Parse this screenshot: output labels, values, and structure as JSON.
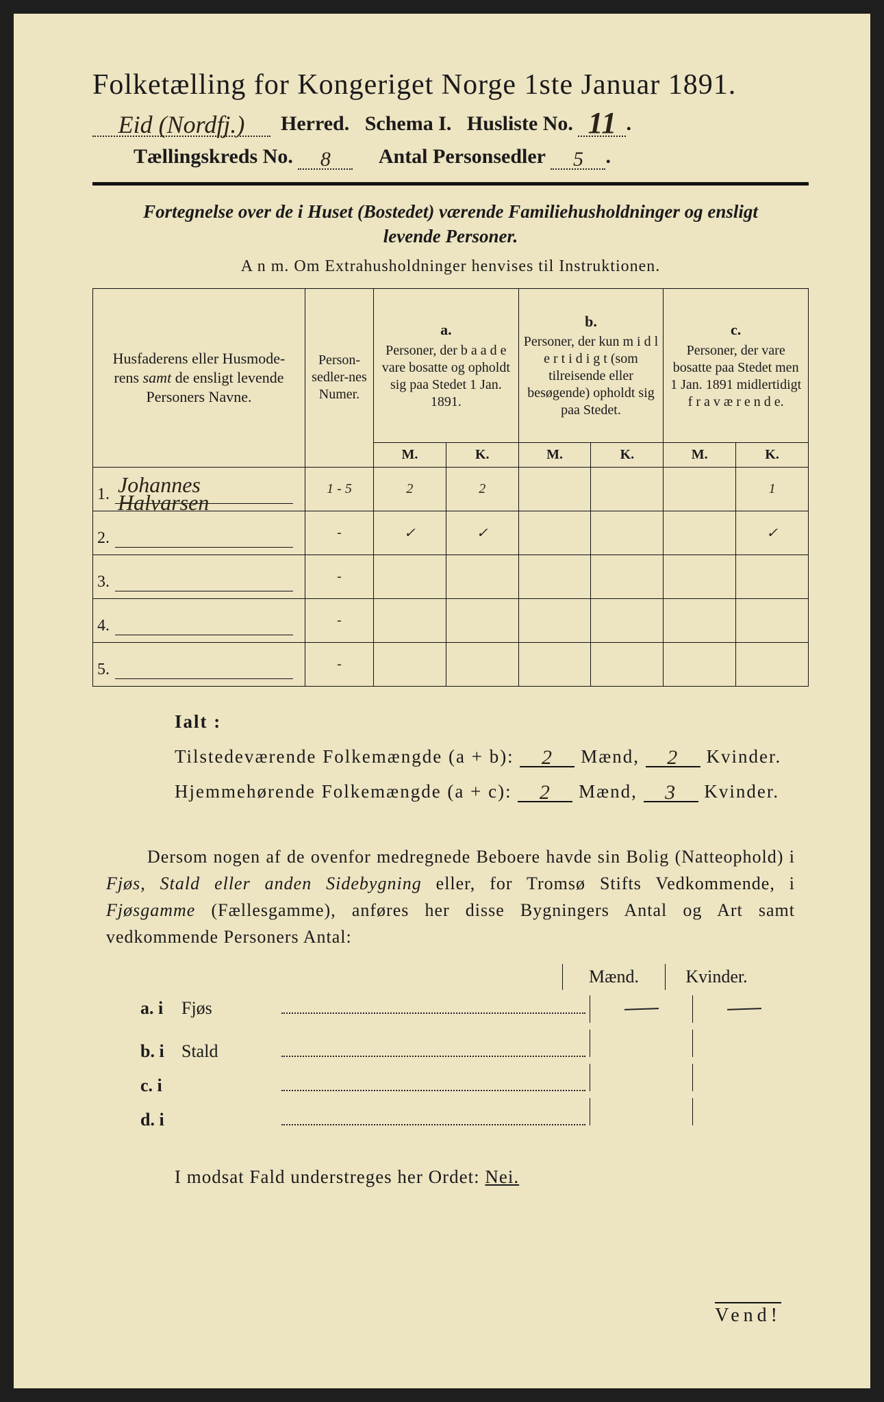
{
  "title": "Folketælling for Kongeriget Norge 1ste Januar 1891.",
  "line2": {
    "herred_value": "Eid (Nordfj.)",
    "herred_label": "Herred.",
    "schema_label": "Schema I.",
    "husliste_label": "Husliste No.",
    "husliste_value": "11"
  },
  "line3": {
    "kreds_label": "Tællingskreds No.",
    "kreds_value": "8",
    "antal_label": "Antal Personsedler",
    "antal_value": "5"
  },
  "subtitle": "Fortegnelse over de i Huset (Bostedet) værende Familiehusholdninger og ensligt levende Personer.",
  "anm": "A n m.   Om Extrahusholdninger henvises til Instruktionen.",
  "table": {
    "col_name": "Husfaderens eller Husmoderens samt de ensligt levende Personers Navne.",
    "col_num": "Person-sedler-nes Numer.",
    "col_a_letter": "a.",
    "col_a": "Personer, der b a a d e vare bosatte og opholdt sig paa Stedet 1 Jan. 1891.",
    "col_b_letter": "b.",
    "col_b": "Personer, der kun m i d l e r t i d i g t (som tilreisende eller besøgende) opholdt sig paa Stedet.",
    "col_c_letter": "c.",
    "col_c": "Personer, der vare bosatte paa Stedet men 1 Jan. 1891 midlertidigt f r a v æ r e n d e.",
    "M": "M.",
    "K": "K.",
    "rows": [
      {
        "n": "1.",
        "name": "Johannes Halvarsen",
        "num": "1 - 5",
        "aM": "2",
        "aK": "2",
        "bM": "",
        "bK": "",
        "cM": "",
        "cK": "1"
      },
      {
        "n": "2.",
        "name": "",
        "num": "-",
        "aM": "✓",
        "aK": "✓",
        "bM": "",
        "bK": "",
        "cM": "",
        "cK": "✓"
      },
      {
        "n": "3.",
        "name": "",
        "num": "-",
        "aM": "",
        "aK": "",
        "bM": "",
        "bK": "",
        "cM": "",
        "cK": ""
      },
      {
        "n": "4.",
        "name": "",
        "num": "-",
        "aM": "",
        "aK": "",
        "bM": "",
        "bK": "",
        "cM": "",
        "cK": ""
      },
      {
        "n": "5.",
        "name": "",
        "num": "-",
        "aM": "",
        "aK": "",
        "bM": "",
        "bK": "",
        "cM": "",
        "cK": ""
      }
    ]
  },
  "ialt": {
    "label": "Ialt :",
    "line1_label": "Tilstedeværende Folkemængde (a + b):",
    "line1_m": "2",
    "line1_k": "2",
    "line2_label": "Hjemmehørende Folkemængde (a + c):",
    "line2_m": "2",
    "line2_k": "3",
    "maend": "Mænd,",
    "kvinder": "Kvinder."
  },
  "paragraph": {
    "text1": "Dersom nogen af de ovenfor medregnede Beboere havde sin Bolig (Natteophold) i ",
    "it1": "Fjøs, Stald eller anden Sidebygning",
    "text2": " eller, for Tromsø Stifts Vedkommende, i ",
    "it2": "Fjøsgamme",
    "text3": " (Fællesgamme), anføres her disse Bygningers Antal og Art samt vedkommende Personers Antal:"
  },
  "mk": {
    "maend": "Mænd.",
    "kvinder": "Kvinder."
  },
  "sublist": [
    {
      "lead": "a.  i",
      "word": "Fjøs",
      "m": "—",
      "k": "—"
    },
    {
      "lead": "b.  i",
      "word": "Stald",
      "m": "",
      "k": ""
    },
    {
      "lead": "c.  i",
      "word": "",
      "m": "",
      "k": ""
    },
    {
      "lead": "d.  i",
      "word": "",
      "m": "",
      "k": ""
    }
  ],
  "modsat": {
    "pre": "I modsat Fald understreges her Ordet: ",
    "word": "Nei."
  },
  "vend": "Vend!"
}
